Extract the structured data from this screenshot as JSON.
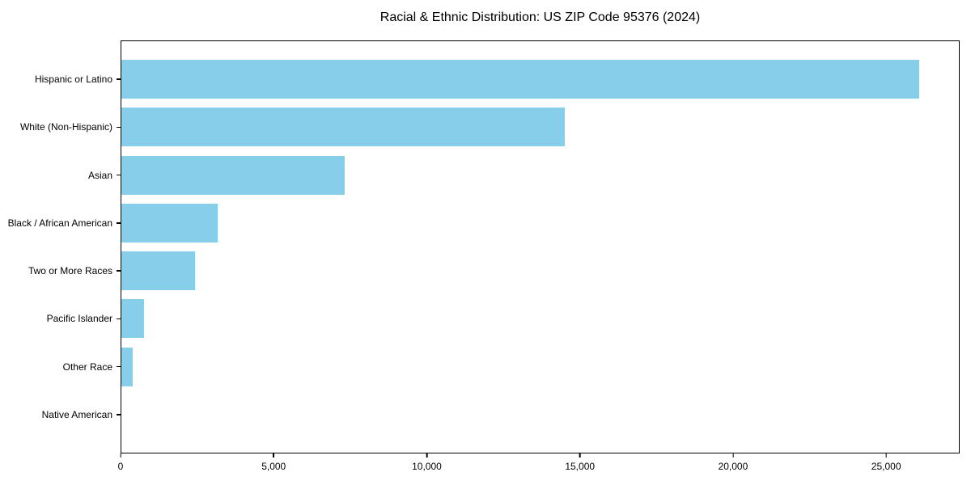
{
  "figure": {
    "title": "Racial & Ethnic Distribution: US ZIP Code 95376 (2024)"
  },
  "chart_data": {
    "type": "bar",
    "orientation": "horizontal",
    "title": "Racial & Ethnic Distribution: US ZIP Code 95376 (2024)",
    "categories": [
      "Hispanic or Latino",
      "White (Non-Hispanic)",
      "Asian",
      "Black / African American",
      "Two or More Races",
      "Pacific Islander",
      "Other Race",
      "Native American"
    ],
    "values": [
      26100,
      14500,
      7300,
      3150,
      2400,
      750,
      370,
      0
    ],
    "bar_color": "#87CEEB",
    "xlabel": "",
    "ylabel": "",
    "xlim": [
      0,
      27400
    ],
    "xticks": [
      {
        "value": 0,
        "label": "0"
      },
      {
        "value": 5000,
        "label": "5,000"
      },
      {
        "value": 10000,
        "label": "10,000"
      },
      {
        "value": 15000,
        "label": "15,000"
      },
      {
        "value": 20000,
        "label": "20,000"
      },
      {
        "value": 25000,
        "label": "25,000"
      }
    ],
    "grid": false,
    "legend": null
  }
}
